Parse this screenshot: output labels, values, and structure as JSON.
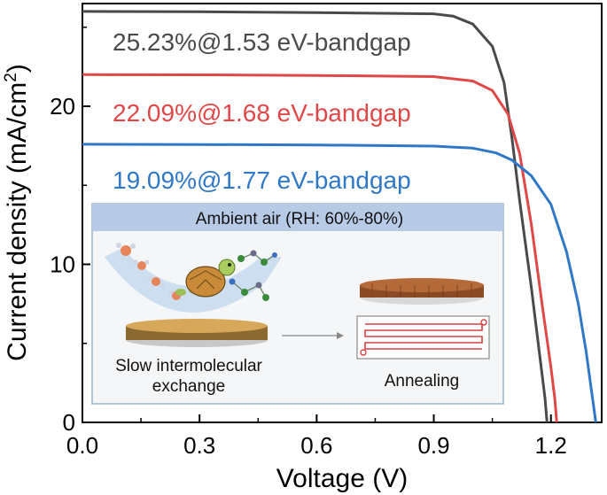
{
  "chart_data": {
    "type": "line",
    "xlabel": "Voltage (V)",
    "ylabel_main": "Current density (mA/cm",
    "ylabel_sup": "2",
    "ylabel_close": ")",
    "xlim": [
      0.0,
      1.33
    ],
    "ylim": [
      0,
      26.5
    ],
    "xticks": [
      0.0,
      0.3,
      0.6,
      0.9,
      1.2
    ],
    "xtick_labels": [
      "0.0",
      "0.3",
      "0.6",
      "0.9",
      "1.2"
    ],
    "yticks": [
      0,
      10,
      20
    ],
    "ytick_labels": [
      "0",
      "10",
      "20"
    ],
    "x_minor_ticks": [
      0.15,
      0.45,
      0.75,
      1.05
    ],
    "y_minor_ticks": [
      5,
      15,
      25
    ],
    "grid": false,
    "legend": "inline annotations (top-left)",
    "series": [
      {
        "name": "25.23%@1.53 eV-bandgap",
        "color": "#4a4a4a",
        "points": [
          [
            0.0,
            26.0
          ],
          [
            0.3,
            25.98
          ],
          [
            0.6,
            25.93
          ],
          [
            0.9,
            25.85
          ],
          [
            0.95,
            25.7
          ],
          [
            1.0,
            25.2
          ],
          [
            1.05,
            23.8
          ],
          [
            1.08,
            21.5
          ],
          [
            1.1,
            18.0
          ],
          [
            1.12,
            14.0
          ],
          [
            1.15,
            8.5
          ],
          [
            1.17,
            4.5
          ],
          [
            1.185,
            1.5
          ],
          [
            1.19,
            0.0
          ]
        ]
      },
      {
        "name": "22.09%@1.68 eV-bandgap",
        "color": "#e04848",
        "points": [
          [
            0.0,
            22.0
          ],
          [
            0.3,
            21.99
          ],
          [
            0.6,
            21.95
          ],
          [
            0.9,
            21.88
          ],
          [
            1.0,
            21.6
          ],
          [
            1.05,
            21.0
          ],
          [
            1.09,
            19.5
          ],
          [
            1.12,
            17.0
          ],
          [
            1.15,
            12.5
          ],
          [
            1.18,
            7.0
          ],
          [
            1.2,
            3.5
          ],
          [
            1.21,
            1.5
          ],
          [
            1.215,
            0.0
          ]
        ]
      },
      {
        "name": "19.09%@1.77 eV-bandgap",
        "color": "#2f78c8",
        "points": [
          [
            0.0,
            17.6
          ],
          [
            0.3,
            17.58
          ],
          [
            0.6,
            17.55
          ],
          [
            0.9,
            17.48
          ],
          [
            1.0,
            17.35
          ],
          [
            1.06,
            17.05
          ],
          [
            1.1,
            16.6
          ],
          [
            1.15,
            15.6
          ],
          [
            1.2,
            13.8
          ],
          [
            1.24,
            10.8
          ],
          [
            1.27,
            7.5
          ],
          [
            1.29,
            4.5
          ],
          [
            1.305,
            1.8
          ],
          [
            1.315,
            0.0
          ]
        ]
      }
    ],
    "annotations": [
      "25.23%@1.53 eV-bandgap",
      "22.09%@1.68 eV-bandgap",
      "19.09%@1.77 eV-bandgap"
    ]
  },
  "inset": {
    "header": "Ambient air (RH: 60%-80%)",
    "left_caption_line1": "Slow intermolecular",
    "left_caption_line2": "exchange",
    "right_caption": "Annealing",
    "colors": {
      "header_fill": "#b8cbe6",
      "panel_fill": "#f4f6f8",
      "swoosh": "#c9dcf0",
      "film_top": "#d8a85a",
      "film_dark": "#8a6a30",
      "substrate": "#dcdcdc",
      "turtle_shell": "#c98a3a",
      "turtle_body": "#9bbf55",
      "annealed_film": "#b56a3a",
      "heater_line": "#d84040"
    }
  }
}
